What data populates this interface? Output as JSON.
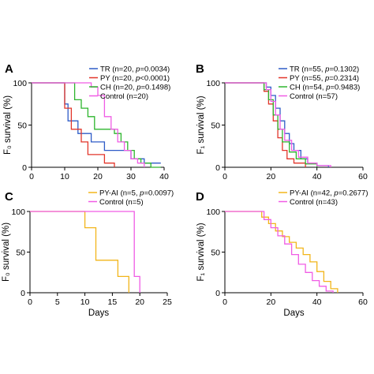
{
  "chart_data": [
    {
      "panel": "A",
      "type": "line",
      "step": true,
      "xlabel": "",
      "ylabel": "F₀ survival (%)",
      "xlim": [
        0,
        40
      ],
      "ylim": [
        0,
        100
      ],
      "xticks": [
        0,
        10,
        20,
        30,
        40
      ],
      "yticks": [
        0,
        50,
        100
      ],
      "legend_position": "top-right",
      "series": [
        {
          "name": "TR (n=20, ",
          "p_label": "p",
          "p_value": "=0.0034)",
          "color": "#2f5cc7",
          "x": [
            0,
            9,
            10,
            11,
            14,
            18,
            22,
            26,
            30,
            34,
            39
          ],
          "y": [
            100,
            100,
            75,
            55,
            40,
            30,
            20,
            20,
            10,
            5,
            5
          ]
        },
        {
          "name": "PY (n=20, ",
          "p_label": "p",
          "p_value": "<0.0001)",
          "color": "#e2352a",
          "x": [
            0,
            9,
            10,
            12,
            15,
            17,
            22,
            25
          ],
          "y": [
            100,
            100,
            70,
            45,
            30,
            15,
            5,
            0
          ]
        },
        {
          "name": "CH (n=20, ",
          "p_label": "p",
          "p_value": "=0.1498)",
          "color": "#2db52d",
          "x": [
            0,
            11,
            13,
            15,
            17,
            19,
            25,
            27,
            29,
            31,
            33,
            36,
            39
          ],
          "y": [
            100,
            100,
            80,
            70,
            60,
            45,
            40,
            30,
            20,
            10,
            5,
            0,
            0
          ]
        },
        {
          "name": "Control (n=20)",
          "color": "#f05ce5",
          "x": [
            0,
            15,
            18,
            20,
            22,
            24,
            26,
            28,
            30,
            32,
            34
          ],
          "y": [
            100,
            100,
            95,
            85,
            60,
            45,
            30,
            20,
            10,
            5,
            0
          ]
        }
      ]
    },
    {
      "panel": "B",
      "type": "line",
      "step": true,
      "xlabel": "",
      "ylabel": "F₁ survival (%)",
      "xlim": [
        0,
        60
      ],
      "ylim": [
        0,
        100
      ],
      "xticks": [
        0,
        20,
        40,
        60
      ],
      "yticks": [
        0,
        50,
        100
      ],
      "legend_position": "top-right",
      "series": [
        {
          "name": "TR (n=55, ",
          "p_label": "p",
          "p_value": "=0.1302)",
          "color": "#2f5cc7",
          "x": [
            0,
            15,
            18,
            20,
            22,
            24,
            26,
            28,
            30,
            33,
            36,
            40,
            45
          ],
          "y": [
            100,
            100,
            95,
            85,
            70,
            55,
            40,
            28,
            20,
            10,
            5,
            2,
            0
          ]
        },
        {
          "name": "PY (n=55, ",
          "p_label": "p",
          "p_value": "=0.2314)",
          "color": "#e2352a",
          "x": [
            0,
            14,
            17,
            19,
            21,
            23,
            25,
            27,
            30,
            35
          ],
          "y": [
            100,
            100,
            90,
            75,
            55,
            35,
            20,
            10,
            5,
            0
          ]
        },
        {
          "name": "CH (n=54, ",
          "p_label": "p",
          "p_value": "=0.9483)",
          "color": "#2db52d",
          "x": [
            0,
            14,
            17,
            19,
            21,
            23,
            25,
            28,
            31,
            35,
            40
          ],
          "y": [
            100,
            100,
            92,
            80,
            62,
            45,
            30,
            18,
            10,
            4,
            0
          ]
        },
        {
          "name": "Control (n=57)",
          "color": "#f05ce5",
          "x": [
            0,
            15,
            18,
            20,
            22,
            24,
            26,
            29,
            32,
            36,
            40,
            46
          ],
          "y": [
            100,
            100,
            92,
            78,
            62,
            45,
            32,
            20,
            12,
            5,
            2,
            0
          ]
        }
      ]
    },
    {
      "panel": "C",
      "type": "line",
      "step": true,
      "xlabel": "Days",
      "ylabel": "F₀ survival (%)",
      "xlim": [
        0,
        25
      ],
      "ylim": [
        0,
        100
      ],
      "xticks": [
        0,
        5,
        10,
        15,
        20,
        25
      ],
      "yticks": [
        0,
        50,
        100
      ],
      "legend_position": "top-right",
      "series": [
        {
          "name": "PY-AI (n=5, ",
          "p_label": "p",
          "p_value": "=0.0097)",
          "color": "#f2b51a",
          "x": [
            0,
            9,
            10,
            12,
            16,
            18
          ],
          "y": [
            100,
            100,
            80,
            40,
            20,
            0
          ]
        },
        {
          "name": "Control (n=5)",
          "color": "#f05ce5",
          "x": [
            0,
            18,
            19,
            20
          ],
          "y": [
            100,
            100,
            20,
            0
          ]
        }
      ]
    },
    {
      "panel": "D",
      "type": "line",
      "step": true,
      "xlabel": "Days",
      "ylabel": "F₁ survival (%)",
      "xlim": [
        0,
        60
      ],
      "ylim": [
        0,
        100
      ],
      "xticks": [
        0,
        20,
        40,
        60
      ],
      "yticks": [
        0,
        50,
        100
      ],
      "legend_position": "top-right",
      "series": [
        {
          "name": "PY-AI (n=42, ",
          "p_label": "p",
          "p_value": "=0.2677)",
          "color": "#f2b51a",
          "x": [
            0,
            12,
            16,
            19,
            22,
            25,
            28,
            31,
            34,
            37,
            40,
            43,
            46,
            49
          ],
          "y": [
            100,
            100,
            93,
            85,
            76,
            69,
            62,
            55,
            47,
            38,
            26,
            14,
            5,
            0
          ]
        },
        {
          "name": "Control (n=43)",
          "color": "#f05ce5",
          "x": [
            0,
            14,
            17,
            20,
            23,
            26,
            29,
            32,
            35,
            38,
            41,
            44,
            47
          ],
          "y": [
            100,
            100,
            90,
            80,
            70,
            60,
            47,
            35,
            25,
            15,
            8,
            2,
            0
          ]
        }
      ]
    }
  ]
}
